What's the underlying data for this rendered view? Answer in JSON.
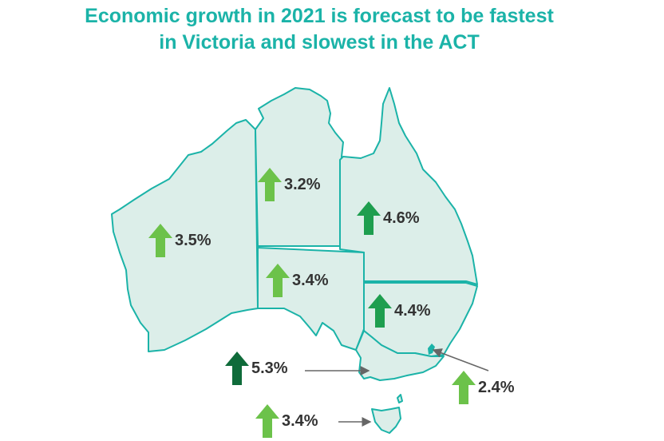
{
  "title": {
    "line1": "Economic growth in 2021 is forecast to be fastest",
    "line2": "in Victoria and slowest in the ACT"
  },
  "colors": {
    "title": "#1BB3A8",
    "land": "#DCEEE9",
    "border": "#1BB3A8",
    "arrow_light": "#6CC24A",
    "arrow_medium": "#1E9E4F",
    "arrow_dark": "#0F6B3A",
    "text": "#333333",
    "pointer": "#666666"
  },
  "regions": [
    {
      "name": "Western Australia",
      "growth": "3.5%",
      "arrow": "up-arrow-icon",
      "shade": "light"
    },
    {
      "name": "Northern Territory",
      "growth": "3.2%",
      "arrow": "up-arrow-icon",
      "shade": "light"
    },
    {
      "name": "Queensland",
      "growth": "4.6%",
      "arrow": "up-arrow-icon",
      "shade": "medium"
    },
    {
      "name": "South Australia",
      "growth": "3.4%",
      "arrow": "up-arrow-icon",
      "shade": "light"
    },
    {
      "name": "New South Wales",
      "growth": "4.4%",
      "arrow": "up-arrow-icon",
      "shade": "medium"
    },
    {
      "name": "Victoria",
      "growth": "5.3%",
      "arrow": "up-arrow-icon",
      "shade": "dark"
    },
    {
      "name": "Australian Capital Territory",
      "growth": "2.4%",
      "arrow": "up-arrow-icon",
      "shade": "light"
    },
    {
      "name": "Tasmania",
      "growth": "3.4%",
      "arrow": "up-arrow-icon",
      "shade": "light"
    }
  ]
}
